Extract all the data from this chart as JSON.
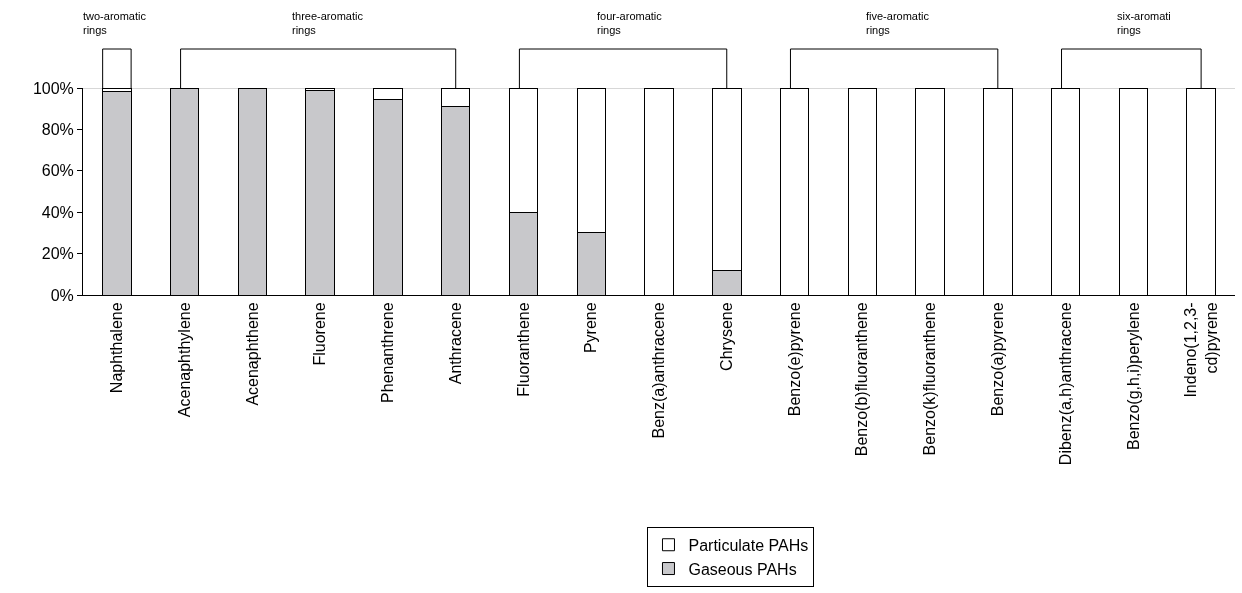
{
  "chart_data": {
    "type": "bar",
    "stacked": true,
    "categories": [
      "Naphthalene",
      "Acenaphthylene",
      "Acenaphthene",
      "Fluorene",
      "Phenanthrene",
      "Anthracene",
      "Fluoranthene",
      "Pyrene",
      "Benz(a)anthracene",
      "Chrysene",
      "Benzo(e)pyrene",
      "Benzo(b)fluoranthene",
      "Benzo(k)fluoranthene",
      "Benzo(a)pyrene",
      "Dibenz(a,h)anthracene",
      "Benzo(g,h,i)perylene",
      "Indeno(1,2,3-\ncd)pyrene"
    ],
    "series": [
      {
        "name": "Gaseous PAHs",
        "color": "#c8c8cb",
        "values": [
          98.5,
          100,
          100,
          99,
          94.5,
          91,
          40,
          30,
          0,
          12,
          0,
          0,
          0,
          0,
          0,
          0,
          0
        ]
      },
      {
        "name": "Particulate PAHs",
        "color": "#ffffff",
        "values": [
          1.5,
          0,
          0,
          1,
          5.5,
          9,
          60,
          70,
          100,
          88,
          100,
          100,
          100,
          100,
          100,
          100,
          100
        ]
      }
    ],
    "ylim": [
      0,
      100
    ],
    "yticks": [
      {
        "value": 0,
        "label": "0%"
      },
      {
        "value": 20,
        "label": "20%"
      },
      {
        "value": 40,
        "label": "40%"
      },
      {
        "value": 60,
        "label": "60%"
      },
      {
        "value": 80,
        "label": "80%"
      },
      {
        "value": 100,
        "label": "100%"
      }
    ],
    "ref_lines": [
      {
        "axis": "y",
        "value": 100,
        "color": "#b0b0b0"
      }
    ],
    "annotations": [
      "two-aromatic\nrings",
      "three-aromatic\nrings",
      "four-aromatic\nrings",
      "five-aromatic\nrings",
      "six-aromati\nrings"
    ],
    "grid": false,
    "legend": "bottom"
  }
}
